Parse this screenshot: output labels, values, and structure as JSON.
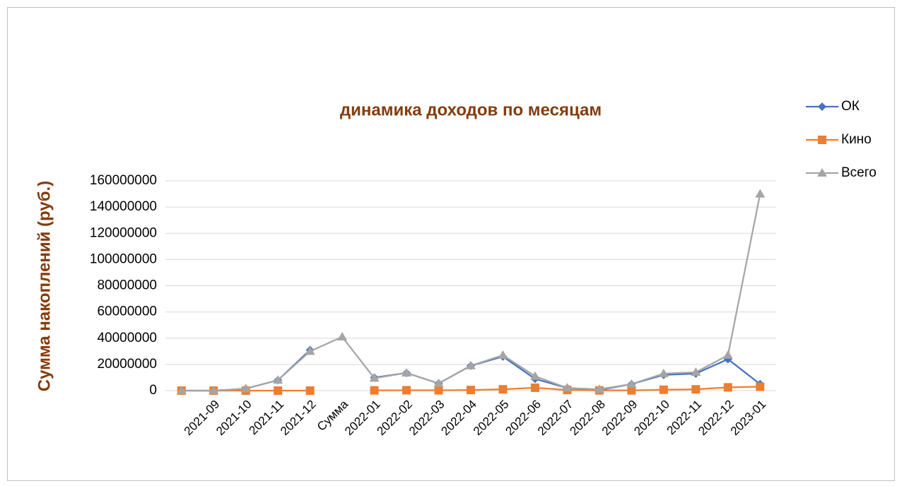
{
  "chart_data": {
    "type": "line",
    "title": "динамика доходов по месяцам",
    "y_label": "Сумма накоплений (руб.)",
    "categories": [
      null,
      "2021-09",
      "2021-10",
      "2021-11",
      "2021-12",
      "Сумма",
      "2022-01",
      "2022-02",
      "2022-03",
      "2022-04",
      "2022-05",
      "2022-06",
      "2022-07",
      "2022-08",
      "2022-09",
      "2022-10",
      "2022-11",
      "2022-12",
      "2023-01"
    ],
    "series": [
      {
        "name": "ОК",
        "color": "#4472c4",
        "marker": "diamond",
        "values": [
          0,
          0,
          1500000,
          8000000,
          31000000,
          null,
          10000000,
          13500000,
          5500000,
          19000000,
          26000000,
          9000000,
          2000000,
          500000,
          5000000,
          12000000,
          13000000,
          24000000,
          5000000
        ]
      },
      {
        "name": "Кино",
        "color": "#ed7d31",
        "marker": "square",
        "values": [
          0,
          0,
          0,
          0,
          0,
          null,
          200000,
          300000,
          300000,
          500000,
          1000000,
          2200000,
          500000,
          200000,
          200000,
          700000,
          1000000,
          2500000,
          3000000
        ]
      },
      {
        "name": "Всего",
        "color": "#a5a5a5",
        "marker": "triangle",
        "values": [
          0,
          0,
          1500000,
          8000000,
          30000000,
          41000000,
          9500000,
          13500000,
          5500000,
          19000000,
          27000000,
          11000000,
          2000000,
          1000000,
          5000000,
          13000000,
          14000000,
          27000000,
          150000000
        ]
      }
    ],
    "ylim": [
      0,
      160000000
    ],
    "yticks": [
      0,
      20000000,
      40000000,
      60000000,
      80000000,
      100000000,
      120000000,
      140000000,
      160000000
    ],
    "grid": true,
    "legend": "right"
  }
}
